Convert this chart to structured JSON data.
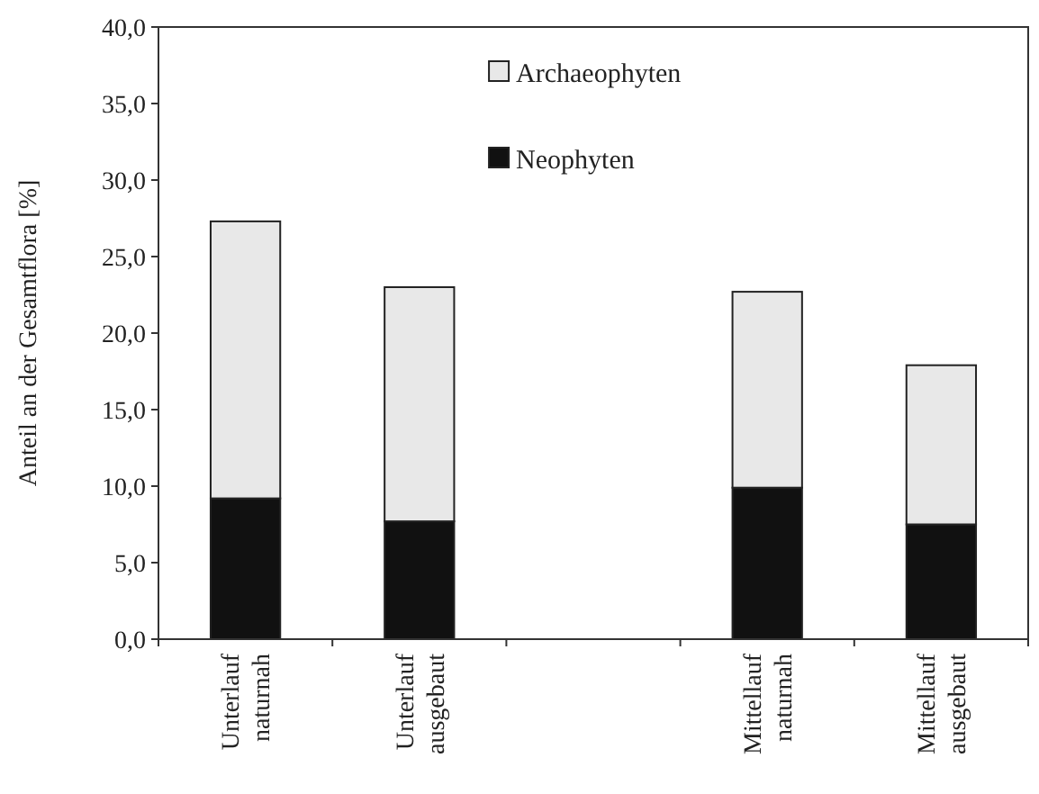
{
  "chart_data": {
    "type": "bar",
    "stacked": true,
    "ylabel": "Anteil an der Gesamtflora [%]",
    "categories": [
      "Unterlauf\nnaturnah",
      "Unterlauf\nausgebaut",
      null,
      "Mittellauf\nnaturnah",
      "Mittellauf\nausgebaut"
    ],
    "series": [
      {
        "name": "Neophyten",
        "color": "#111111",
        "values": [
          9.2,
          7.7,
          null,
          9.9,
          7.5
        ]
      },
      {
        "name": "Archaeophyten",
        "color": "#e8e8e8",
        "values": [
          18.1,
          15.3,
          null,
          12.8,
          10.4
        ]
      }
    ],
    "ylim": [
      0,
      40
    ],
    "yticks": [
      {
        "value": 0,
        "label": "0,0"
      },
      {
        "value": 5,
        "label": "5,0"
      },
      {
        "value": 10,
        "label": "10,0"
      },
      {
        "value": 15,
        "label": "15,0"
      },
      {
        "value": 20,
        "label": "20,0"
      },
      {
        "value": 25,
        "label": "25,0"
      },
      {
        "value": 30,
        "label": "30,0"
      },
      {
        "value": 35,
        "label": "35,0"
      },
      {
        "value": 40,
        "label": "40,0"
      }
    ],
    "legend": "top",
    "grid": false
  }
}
